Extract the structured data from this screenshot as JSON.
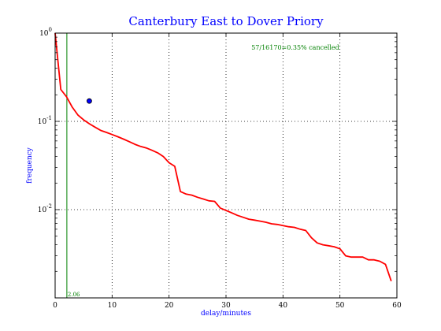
{
  "chart_data": {
    "type": "line",
    "title": "Canterbury East to Dover Priory",
    "xlabel": "delay/minutes",
    "ylabel": "frequency",
    "xlim": [
      0,
      60
    ],
    "ylim": [
      0.001,
      1.0
    ],
    "yscale": "log",
    "grid": true,
    "x_ticks": [
      0,
      10,
      20,
      30,
      40,
      50,
      60
    ],
    "x_tick_labels": [
      "0",
      "10",
      "20",
      "30",
      "40",
      "50",
      "60"
    ],
    "y_ticks": [
      0.01,
      0.1,
      1.0
    ],
    "y_tick_labels": [
      {
        "base": "10",
        "exp": "-2"
      },
      {
        "base": "10",
        "exp": "-1"
      },
      {
        "base": "10",
        "exp": "0"
      }
    ],
    "annotation": "57/16170=0.35% cancelled",
    "vline": {
      "x": 2.06,
      "label": "2.06",
      "color": "#008000"
    },
    "marker_point": {
      "x": 6,
      "y": 0.17,
      "color": "#0000ff"
    },
    "series": [
      {
        "color": "#ff0000",
        "x": [
          0,
          1,
          2,
          3,
          4,
          5,
          6,
          7,
          8,
          9,
          10,
          11,
          12,
          13,
          14,
          15,
          16,
          17,
          18,
          19,
          20,
          21,
          22,
          23,
          24,
          25,
          26,
          27,
          28,
          29,
          30,
          31,
          32,
          33,
          34,
          35,
          36,
          37,
          38,
          39,
          40,
          41,
          42,
          43,
          44,
          45,
          46,
          47,
          48,
          49,
          50,
          51,
          52,
          53,
          54,
          55,
          56,
          57,
          58,
          59
        ],
        "y": [
          1.0,
          0.23,
          0.19,
          0.145,
          0.118,
          0.104,
          0.094,
          0.086,
          0.079,
          0.075,
          0.071,
          0.067,
          0.063,
          0.059,
          0.055,
          0.052,
          0.05,
          0.047,
          0.044,
          0.04,
          0.034,
          0.031,
          0.016,
          0.015,
          0.0146,
          0.0138,
          0.0132,
          0.0126,
          0.0124,
          0.0104,
          0.0098,
          0.0092,
          0.0086,
          0.0082,
          0.0078,
          0.0076,
          0.0074,
          0.0072,
          0.0069,
          0.0068,
          0.0066,
          0.0064,
          0.0063,
          0.006,
          0.0058,
          0.0048,
          0.0042,
          0.004,
          0.0039,
          0.0038,
          0.0036,
          0.003,
          0.0029,
          0.0029,
          0.0029,
          0.0027,
          0.0027,
          0.0026,
          0.0024,
          0.00155
        ]
      }
    ]
  }
}
